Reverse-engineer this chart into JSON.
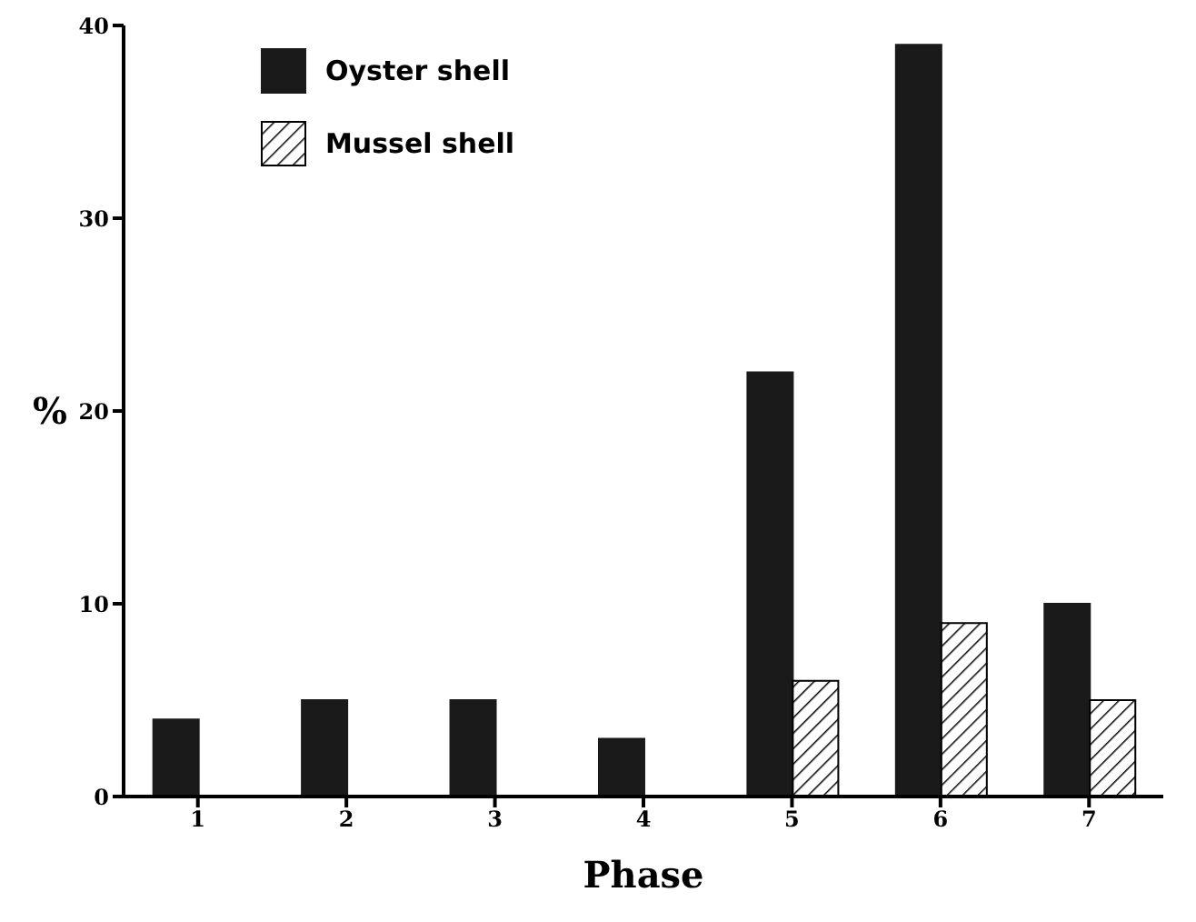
{
  "chart_data": {
    "type": "bar",
    "xlabel": "Phase",
    "ylabel": "%",
    "categories": [
      "1",
      "2",
      "3",
      "4",
      "5",
      "6",
      "7"
    ],
    "series": [
      {
        "name": "Oyster shell",
        "color": "#1a1a1a",
        "values": [
          4,
          5,
          5,
          3,
          22,
          39,
          10
        ]
      },
      {
        "name": "Mussel shell",
        "color": "#000000",
        "values": [
          null,
          null,
          null,
          null,
          6,
          9,
          5
        ]
      }
    ],
    "ylim": [
      0,
      40
    ],
    "yticks": [
      0,
      10,
      20,
      30,
      40
    ],
    "grid": false,
    "legend": "top left"
  }
}
